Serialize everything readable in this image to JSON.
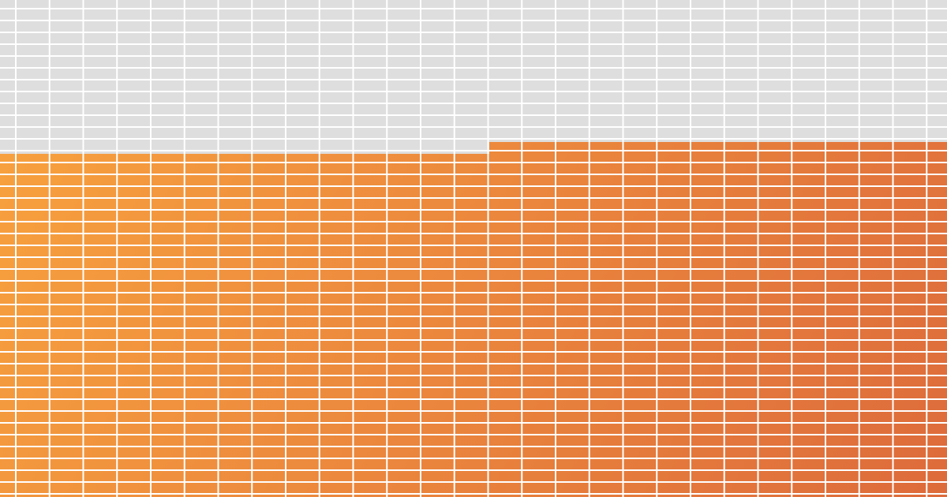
{
  "colors": {
    "empty": "#dedede",
    "fill_start": "#f9a43f",
    "fill_end": "#dd6b3b",
    "gridline": "#ffffff"
  },
  "grid": {
    "columns": 28,
    "rows": 42
  },
  "fill": {
    "left_half_filled_rows": 29,
    "right_half_filled_rows": 30
  }
}
